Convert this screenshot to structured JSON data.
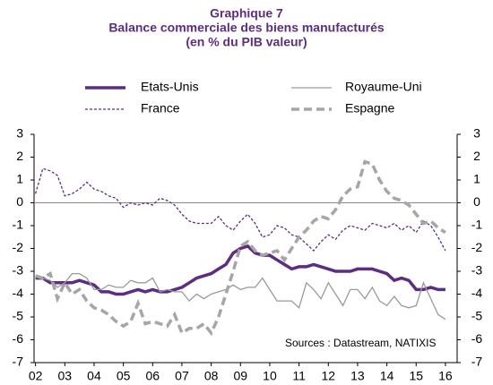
{
  "chart_data": {
    "type": "line",
    "title": [
      "Graphique 7",
      "Balance commerciale des biens manufacturés",
      "(en % du PIB valeur)"
    ],
    "annotation": "Sources : Datastream, NATIXIS",
    "x": [
      2002,
      2002.25,
      2002.5,
      2002.75,
      2003,
      2003.25,
      2003.5,
      2003.75,
      2004,
      2004.25,
      2004.5,
      2004.75,
      2005,
      2005.25,
      2005.5,
      2005.75,
      2006,
      2006.25,
      2006.5,
      2006.75,
      2007,
      2007.25,
      2007.5,
      2007.75,
      2008,
      2008.25,
      2008.5,
      2008.75,
      2009,
      2009.25,
      2009.5,
      2009.75,
      2010,
      2010.25,
      2010.5,
      2010.75,
      2011,
      2011.25,
      2011.5,
      2011.75,
      2012,
      2012.25,
      2012.5,
      2012.75,
      2013,
      2013.25,
      2013.5,
      2013.75,
      2014,
      2014.25,
      2014.5,
      2014.75,
      2015,
      2015.25,
      2015.5,
      2015.75,
      2016
    ],
    "series": [
      {
        "name": "Etats-Unis",
        "color": "#5c2d82",
        "line_style": "thick",
        "values": [
          -3.3,
          -3.3,
          -3.5,
          -3.5,
          -3.5,
          -3.5,
          -3.4,
          -3.5,
          -3.6,
          -3.9,
          -3.9,
          -4.0,
          -4.0,
          -3.9,
          -3.8,
          -3.9,
          -3.8,
          -3.9,
          -3.9,
          -3.8,
          -3.7,
          -3.5,
          -3.3,
          -3.2,
          -3.1,
          -2.9,
          -2.7,
          -2.2,
          -2.0,
          -1.9,
          -2.2,
          -2.3,
          -2.3,
          -2.5,
          -2.7,
          -2.9,
          -2.8,
          -2.8,
          -2.7,
          -2.8,
          -2.9,
          -3.0,
          -3.0,
          -3.0,
          -2.9,
          -2.9,
          -2.9,
          -3.0,
          -3.1,
          -3.4,
          -3.3,
          -3.4,
          -3.8,
          -3.8,
          -3.7,
          -3.8,
          -3.8
        ]
      },
      {
        "name": "Royaume-Uni",
        "color": "#9a9a9a",
        "line_style": "thin",
        "values": [
          -3.2,
          -3.3,
          -3.4,
          -3.7,
          -3.5,
          -3.1,
          -3.1,
          -3.3,
          -3.8,
          -3.8,
          -3.6,
          -3.7,
          -3.7,
          -3.4,
          -3.5,
          -3.5,
          -3.3,
          -3.9,
          -3.8,
          -3.9,
          -3.9,
          -4.3,
          -4.0,
          -4.2,
          -4.0,
          -3.9,
          -3.8,
          -3.6,
          -3.8,
          -3.7,
          -3.7,
          -3.3,
          -3.8,
          -4.3,
          -4.3,
          -4.3,
          -4.6,
          -3.5,
          -3.8,
          -4.2,
          -3.5,
          -4.0,
          -4.5,
          -3.8,
          -3.8,
          -4.2,
          -3.7,
          -4.3,
          -4.5,
          -4.1,
          -4.5,
          -4.6,
          -4.5,
          -3.5,
          -4.2,
          -4.9,
          -5.1
        ]
      },
      {
        "name": "France",
        "color": "#5c2d82",
        "line_style": "dotted",
        "values": [
          0.4,
          1.5,
          1.4,
          1.2,
          0.3,
          0.4,
          0.6,
          0.9,
          0.6,
          0.5,
          0.3,
          0.2,
          -0.2,
          0.0,
          -0.1,
          0.0,
          -0.1,
          0.2,
          0.1,
          -0.1,
          -0.5,
          -0.8,
          -0.9,
          -0.9,
          -0.9,
          -0.6,
          -1.0,
          -1.2,
          -0.8,
          -0.5,
          -0.9,
          -1.5,
          -1.4,
          -1.0,
          -1.1,
          -1.4,
          -1.5,
          -1.8,
          -2.1,
          -1.7,
          -1.4,
          -1.6,
          -1.2,
          -1.0,
          -1.1,
          -1.2,
          -0.9,
          -1.0,
          -1.1,
          -0.9,
          -1.2,
          -1.0,
          -1.3,
          -0.8,
          -1.0,
          -1.5,
          -2.1
        ]
      },
      {
        "name": "Espagne",
        "color": "#a6a6a6",
        "line_style": "dashed",
        "values": [
          -3.2,
          -3.3,
          -3.1,
          -4.2,
          -3.5,
          -4.0,
          -3.8,
          -4.3,
          -4.6,
          -4.7,
          -4.9,
          -5.2,
          -5.4,
          -5.2,
          -4.4,
          -5.3,
          -5.2,
          -5.3,
          -5.4,
          -4.9,
          -5.7,
          -5.5,
          -5.5,
          -5.3,
          -5.7,
          -5.0,
          -4.0,
          -3.0,
          -1.9,
          -1.7,
          -2.1,
          -2.3,
          -2.2,
          -2.1,
          -2.5,
          -2.0,
          -1.5,
          -1.2,
          -0.8,
          -0.6,
          -0.7,
          -0.3,
          0.3,
          0.6,
          0.7,
          1.8,
          1.7,
          1.0,
          0.5,
          0.2,
          0.1,
          -0.1,
          -0.5,
          -0.9,
          -0.8,
          -1.1,
          -1.3
        ]
      }
    ],
    "xlim": [
      2001.95,
      2016.4
    ],
    "xticks": [
      {
        "value": 2002,
        "label": "02"
      },
      {
        "value": 2003,
        "label": "03"
      },
      {
        "value": 2004,
        "label": "04"
      },
      {
        "value": 2005,
        "label": "05"
      },
      {
        "value": 2006,
        "label": "06"
      },
      {
        "value": 2007,
        "label": "07"
      },
      {
        "value": 2008,
        "label": "08"
      },
      {
        "value": 2009,
        "label": "09"
      },
      {
        "value": 2010,
        "label": "10"
      },
      {
        "value": 2011,
        "label": "11"
      },
      {
        "value": 2012,
        "label": "12"
      },
      {
        "value": 2013,
        "label": "13"
      },
      {
        "value": 2014,
        "label": "14"
      },
      {
        "value": 2015,
        "label": "15"
      },
      {
        "value": 2016,
        "label": "16"
      }
    ],
    "ylim": [
      -7,
      3
    ],
    "yticks": [
      -7,
      -6,
      -5,
      -4,
      -3,
      -2,
      -1,
      0,
      1,
      2,
      3
    ],
    "y2lim": [
      -7,
      3
    ],
    "y2ticks": [
      -7,
      -6,
      -5,
      -4,
      -3,
      -2,
      -1,
      0,
      1,
      2,
      3
    ],
    "grid": false
  }
}
